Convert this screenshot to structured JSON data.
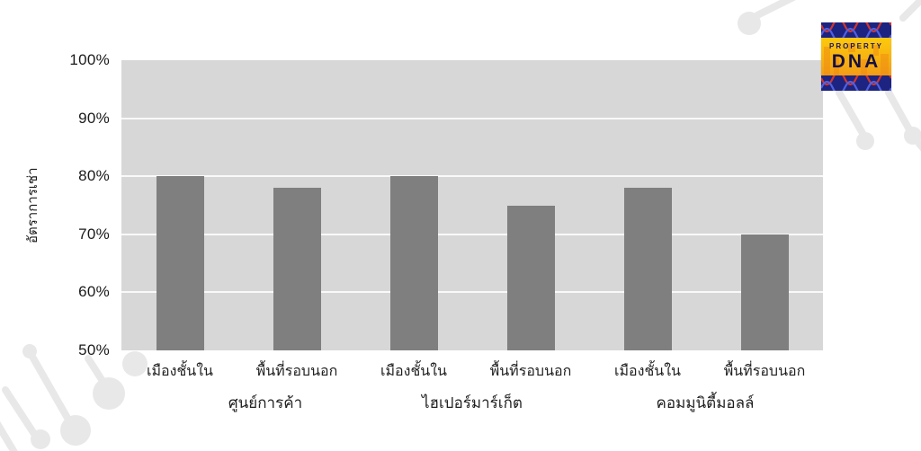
{
  "logo": {
    "line1": "PROPERTY",
    "line2": "DNA",
    "band_color": "#1c2380",
    "body_color": "#f8b310",
    "strand_red": "#d4352c",
    "strand_blue": "#5060e0"
  },
  "chart_data": {
    "type": "bar",
    "title": "",
    "xlabel": "",
    "ylabel": "อัตราการเช่า",
    "ylim": [
      50,
      100
    ],
    "grid": true,
    "legend_position": "none",
    "plot_bg": "#d7d7d7",
    "bar_color": "#7f7f7f",
    "gridline_color": "#ffffff",
    "yticks": [
      {
        "label": "100%",
        "value": 100
      },
      {
        "label": "90%",
        "value": 90
      },
      {
        "label": "80%",
        "value": 80
      },
      {
        "label": "70%",
        "value": 70
      },
      {
        "label": "60%",
        "value": 60
      },
      {
        "label": "50%",
        "value": 50
      }
    ],
    "categories": [
      "เมืองชั้นใน",
      "พื้นที่รอบนอก",
      "เมืองชั้นใน",
      "พื้นที่รอบนอก",
      "เมืองชั้นใน",
      "พื้นที่รอบนอก"
    ],
    "values": [
      80,
      78,
      80,
      75,
      78,
      70
    ],
    "groups": [
      {
        "label": "ศูนย์การค้า",
        "bars": [
          {
            "label": "เมืองชั้นใน",
            "value": 80
          },
          {
            "label": "พื้นที่รอบนอก",
            "value": 78
          }
        ]
      },
      {
        "label": "ไฮเปอร์มาร์เก็ต",
        "bars": [
          {
            "label": "เมืองชั้นใน",
            "value": 80
          },
          {
            "label": "พื้นที่รอบนอก",
            "value": 75
          }
        ]
      },
      {
        "label": "คอมมูนิตี้มอลล์",
        "bars": [
          {
            "label": "เมืองชั้นใน",
            "value": 78
          },
          {
            "label": "พื้นที่รอบนอก",
            "value": 70
          }
        ]
      }
    ]
  },
  "decor_color": "#e8e8e8"
}
